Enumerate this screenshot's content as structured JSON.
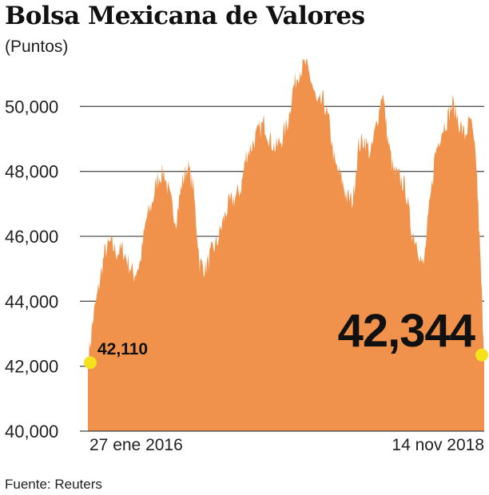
{
  "chart_data": {
    "type": "area",
    "title": "Bolsa Mexicana de Valores",
    "unit_label": "(Puntos)",
    "source": "Fuente: Reuters",
    "ylim": [
      40000,
      52000
    ],
    "y_ticks": [
      {
        "value": 40000,
        "label": "40,000"
      },
      {
        "value": 42000,
        "label": "42,000"
      },
      {
        "value": 44000,
        "label": "44,000"
      },
      {
        "value": 46000,
        "label": "46,000"
      },
      {
        "value": 48000,
        "label": "48,000"
      },
      {
        "value": 50000,
        "label": "50,000"
      }
    ],
    "x_labels": {
      "start": "27 ene 2016",
      "end": "14 nov 2018"
    },
    "grid": true,
    "fill_color": "#f0924b",
    "marker_color": "#f5e21c",
    "start_annotation": {
      "label": "42,110",
      "value": 42110
    },
    "end_annotation": {
      "label": "42,344",
      "value": 42344
    },
    "series": [
      {
        "x": [
          "2016-01-27",
          "2016-02-10",
          "2016-02-25",
          "2016-03-10",
          "2016-03-25",
          "2016-04-10",
          "2016-04-25",
          "2016-05-10",
          "2016-05-25",
          "2016-06-10",
          "2016-06-25",
          "2016-07-10",
          "2016-07-25",
          "2016-08-10",
          "2016-08-25",
          "2016-09-10",
          "2016-09-25",
          "2016-10-10",
          "2016-10-25",
          "2016-11-10",
          "2016-11-25",
          "2016-12-10",
          "2016-12-25",
          "2017-01-10",
          "2017-01-25",
          "2017-02-10",
          "2017-02-25",
          "2017-03-10",
          "2017-03-25",
          "2017-04-10",
          "2017-04-25",
          "2017-05-10",
          "2017-05-25",
          "2017-06-10",
          "2017-06-25",
          "2017-07-10",
          "2017-07-25",
          "2017-08-10",
          "2017-08-25",
          "2017-09-10",
          "2017-09-25",
          "2017-10-10",
          "2017-10-25",
          "2017-11-10",
          "2017-11-25",
          "2017-12-10",
          "2017-12-25",
          "2018-01-10",
          "2018-01-25",
          "2018-02-10",
          "2018-02-25",
          "2018-03-10",
          "2018-03-25",
          "2018-04-10",
          "2018-04-25",
          "2018-05-10",
          "2018-05-25",
          "2018-06-10",
          "2018-06-25",
          "2018-07-10",
          "2018-07-25",
          "2018-08-10",
          "2018-08-25",
          "2018-09-10",
          "2018-09-25",
          "2018-10-10",
          "2018-10-25",
          "2018-11-05",
          "2018-11-14"
        ],
        "values": [
          42110,
          43500,
          44500,
          45500,
          45800,
          45500,
          45600,
          45200,
          44800,
          45200,
          46500,
          47000,
          47800,
          48000,
          47200,
          46500,
          47600,
          48200,
          47500,
          45200,
          45000,
          45500,
          45800,
          46500,
          47000,
          47200,
          47500,
          48500,
          48800,
          49200,
          49500,
          49000,
          48700,
          49000,
          49500,
          50600,
          51100,
          51300,
          50800,
          50000,
          50200,
          49500,
          48200,
          47800,
          47200,
          47100,
          48800,
          49000,
          48500,
          49500,
          50500,
          49000,
          48000,
          47800,
          47500,
          46200,
          45800,
          45000,
          46800,
          48500,
          49200,
          49600,
          50100,
          49500,
          49100,
          49600,
          48200,
          45000,
          42344
        ]
      }
    ]
  }
}
